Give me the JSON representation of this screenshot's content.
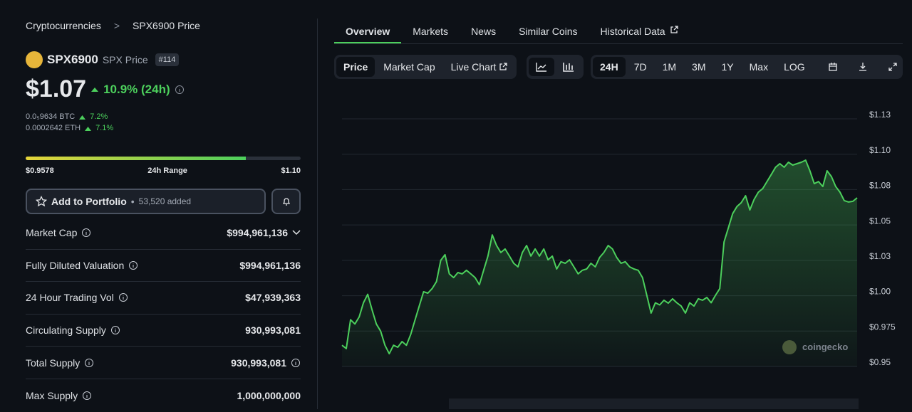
{
  "breadcrumb": [
    "Cryptocurrencies",
    "SPX6900 Price"
  ],
  "coin": {
    "name": "SPX6900",
    "symbol_label": "SPX Price",
    "rank": "#114"
  },
  "price": {
    "value": "$1.07",
    "change": "10.9% (24h)"
  },
  "conversions": [
    {
      "value": "0.0₅9634 BTC",
      "change": "7.2%"
    },
    {
      "value": "0.0002642 ETH",
      "change": "7.1%"
    }
  ],
  "range": {
    "low": "$0.9578",
    "label": "24h Range",
    "high": "$1.10"
  },
  "portfolio": {
    "button": "Add to Portfolio",
    "added": "53,520 added"
  },
  "stats": [
    {
      "label": "Market Cap",
      "value": "$994,961,136"
    },
    {
      "label": "Fully Diluted Valuation",
      "value": "$994,961,136"
    },
    {
      "label": "24 Hour Trading Vol",
      "value": "$47,939,363"
    },
    {
      "label": "Circulating Supply",
      "value": "930,993,081"
    },
    {
      "label": "Total Supply",
      "value": "930,993,081"
    },
    {
      "label": "Max Supply",
      "value": "1,000,000,000"
    }
  ],
  "tabs": [
    "Overview",
    "Markets",
    "News",
    "Similar Coins",
    "Historical Data"
  ],
  "toolbar": {
    "modes": [
      "Price",
      "Market Cap",
      "Live Chart"
    ],
    "ranges": [
      "24H",
      "7D",
      "1M",
      "3M",
      "1Y",
      "Max",
      "LOG"
    ]
  },
  "watermark": "coingecko",
  "chart_data": {
    "type": "area",
    "color": "#4ccf5c",
    "values": [
      0.965,
      0.9626,
      0.983,
      0.98,
      0.985,
      0.995,
      1.001,
      0.99,
      0.98,
      0.975,
      0.965,
      0.959,
      0.965,
      0.9636,
      0.9676,
      0.965,
      0.9726,
      0.9827,
      0.9927,
      1.0028,
      1.0018,
      1.005,
      1.01,
      1.025,
      1.029,
      1.0154,
      1.0128,
      1.0164,
      1.0154,
      1.018,
      1.0154,
      1.0128,
      1.0078,
      1.018,
      1.028,
      1.043,
      1.0355,
      1.0305,
      1.033,
      1.028,
      1.0229,
      1.0204,
      1.0305,
      1.0355,
      1.028,
      1.033,
      1.028,
      1.033,
      1.0254,
      1.028,
      1.0189,
      1.024,
      1.0229,
      1.0254,
      1.0204,
      1.0154,
      1.018,
      1.0189,
      1.0229,
      1.0204,
      1.027,
      1.0305,
      1.0355,
      1.033,
      1.027,
      1.0229,
      1.024,
      1.0204,
      1.0189,
      1.018,
      1.0128,
      1.0003,
      0.9877,
      0.995,
      0.9935,
      0.9968,
      0.9947,
      0.9978,
      0.995,
      0.9927,
      0.9877,
      0.995,
      0.9927,
      0.9978,
      0.9968,
      0.9988,
      0.995,
      1.0003,
      1.005,
      1.038,
      1.048,
      1.058,
      1.063,
      1.0657,
      1.0707,
      1.0606,
      1.068,
      1.0732,
      1.0757,
      1.0807,
      1.0857,
      1.0908,
      1.0933,
      1.0908,
      1.0943,
      1.0923,
      1.0933,
      1.0943,
      1.0958,
      1.0883,
      1.0792,
      1.0807,
      1.0772,
      1.0883,
      1.0842,
      1.0772,
      1.0732,
      1.0672,
      1.0662,
      1.0667,
      1.0692
    ],
    "ylim": [
      0.95,
      1.125
    ],
    "yticks": [
      {
        "value": 1.125,
        "label": "$1.13"
      },
      {
        "value": 1.1,
        "label": "$1.10"
      },
      {
        "value": 1.075,
        "label": "$1.08"
      },
      {
        "value": 1.05,
        "label": "$1.05"
      },
      {
        "value": 1.025,
        "label": "$1.03"
      },
      {
        "value": 1,
        "label": "$1.00"
      },
      {
        "value": 0.975,
        "label": "$0.975"
      },
      {
        "value": 0.95,
        "label": "$0.95"
      }
    ],
    "grid": true
  }
}
